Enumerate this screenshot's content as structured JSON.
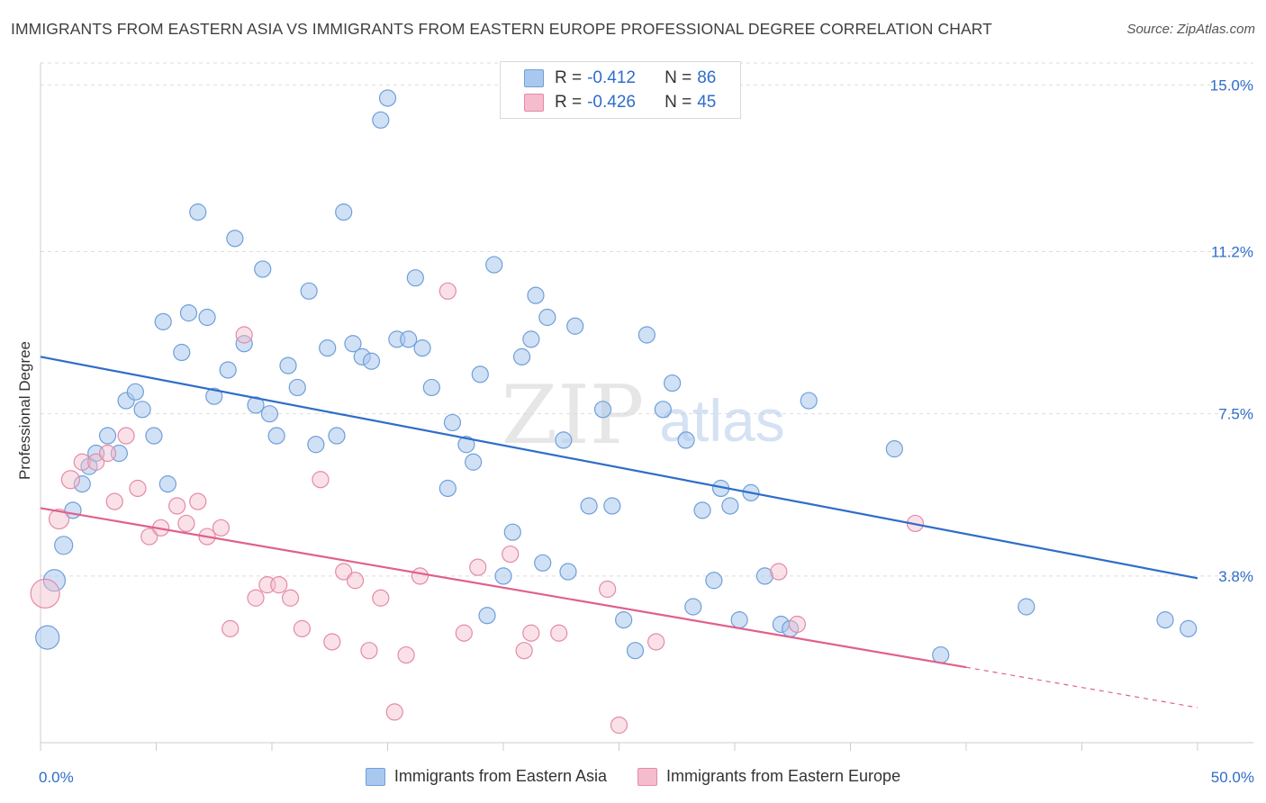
{
  "header": {
    "title": "IMMIGRANTS FROM EASTERN ASIA VS IMMIGRANTS FROM EASTERN EUROPE PROFESSIONAL DEGREE CORRELATION CHART",
    "source": "Source: ZipAtlas.com"
  },
  "watermark": {
    "zip": "ZIP",
    "atlas": "atlas"
  },
  "legend": {
    "rows": [
      {
        "r_label": "R =",
        "r_value": "-0.412",
        "n_label": "N =",
        "n_value": "86"
      },
      {
        "r_label": "R =",
        "r_value": "-0.426",
        "n_label": "N =",
        "n_value": "45"
      }
    ]
  },
  "colors": {
    "blue_fill": "#a9c8ef",
    "blue_stroke": "#6f9fd8",
    "blue_line": "#2f6dc8",
    "pink_fill": "#f5bccd",
    "pink_stroke": "#e48aa8",
    "pink_line": "#e0608c",
    "grid": "#dddddd",
    "tick_label": "#2f6dc8"
  },
  "chart_data": {
    "type": "scatter",
    "title": "IMMIGRANTS FROM EASTERN ASIA VS IMMIGRANTS FROM EASTERN EUROPE PROFESSIONAL DEGREE CORRELATION CHART",
    "xlabel": "",
    "ylabel": "Professional Degree",
    "xlim": [
      0,
      50
    ],
    "ylim": [
      0,
      15.5
    ],
    "x_tick_labels": [
      "0.0%",
      "50.0%"
    ],
    "y_ticks": [
      3.8,
      7.5,
      11.2,
      15.0
    ],
    "y_tick_labels": [
      "3.8%",
      "7.5%",
      "11.2%",
      "15.0%"
    ],
    "grid": "horizontal dashed",
    "legend_position": "top-center",
    "series": [
      {
        "name": "Immigrants from Eastern Asia",
        "r": -0.412,
        "n": 86,
        "trendline": {
          "x": [
            0,
            50
          ],
          "y": [
            8.8,
            3.75
          ],
          "style": "solid"
        },
        "points": [
          [
            0.3,
            2.4,
            13
          ],
          [
            0.6,
            3.7,
            12
          ],
          [
            1.0,
            4.5,
            10
          ],
          [
            1.4,
            5.3,
            9
          ],
          [
            1.8,
            5.9,
            9
          ],
          [
            2.1,
            6.3,
            9
          ],
          [
            2.4,
            6.6,
            9
          ],
          [
            2.9,
            7.0,
            9
          ],
          [
            3.4,
            6.6,
            9
          ],
          [
            3.7,
            7.8,
            9
          ],
          [
            4.1,
            8.0,
            9
          ],
          [
            4.4,
            7.6,
            9
          ],
          [
            4.9,
            7.0,
            9
          ],
          [
            5.3,
            9.6,
            9
          ],
          [
            5.5,
            5.9,
            9
          ],
          [
            6.1,
            8.9,
            9
          ],
          [
            6.4,
            9.8,
            9
          ],
          [
            6.8,
            12.1,
            9
          ],
          [
            7.2,
            9.7,
            9
          ],
          [
            7.5,
            7.9,
            9
          ],
          [
            8.1,
            8.5,
            9
          ],
          [
            8.4,
            11.5,
            9
          ],
          [
            8.8,
            9.1,
            9
          ],
          [
            9.3,
            7.7,
            9
          ],
          [
            9.6,
            10.8,
            9
          ],
          [
            9.9,
            7.5,
            9
          ],
          [
            10.2,
            7.0,
            9
          ],
          [
            10.7,
            8.6,
            9
          ],
          [
            11.1,
            8.1,
            9
          ],
          [
            11.6,
            10.3,
            9
          ],
          [
            11.9,
            6.8,
            9
          ],
          [
            12.4,
            9.0,
            9
          ],
          [
            12.8,
            7.0,
            9
          ],
          [
            13.1,
            12.1,
            9
          ],
          [
            13.5,
            9.1,
            9
          ],
          [
            13.9,
            8.8,
            9
          ],
          [
            14.3,
            8.7,
            9
          ],
          [
            14.7,
            14.2,
            9
          ],
          [
            15.0,
            14.7,
            9
          ],
          [
            15.4,
            9.2,
            9
          ],
          [
            15.9,
            9.2,
            9
          ],
          [
            16.2,
            10.6,
            9
          ],
          [
            16.5,
            9.0,
            9
          ],
          [
            16.9,
            8.1,
            9
          ],
          [
            17.6,
            5.8,
            9
          ],
          [
            17.8,
            7.3,
            9
          ],
          [
            18.4,
            6.8,
            9
          ],
          [
            18.7,
            6.4,
            9
          ],
          [
            19.0,
            8.4,
            9
          ],
          [
            19.3,
            2.9,
            9
          ],
          [
            19.6,
            10.9,
            9
          ],
          [
            20.0,
            3.8,
            9
          ],
          [
            20.4,
            4.8,
            9
          ],
          [
            20.8,
            8.8,
            9
          ],
          [
            21.2,
            9.2,
            9
          ],
          [
            21.4,
            10.2,
            9
          ],
          [
            21.7,
            4.1,
            9
          ],
          [
            21.9,
            9.7,
            9
          ],
          [
            22.6,
            6.9,
            9
          ],
          [
            22.8,
            3.9,
            9
          ],
          [
            23.1,
            9.5,
            9
          ],
          [
            23.7,
            5.4,
            9
          ],
          [
            24.3,
            7.6,
            9
          ],
          [
            24.7,
            5.4,
            9
          ],
          [
            25.2,
            2.8,
            9
          ],
          [
            25.7,
            2.1,
            9
          ],
          [
            26.2,
            9.3,
            9
          ],
          [
            26.9,
            7.6,
            9
          ],
          [
            27.3,
            8.2,
            9
          ],
          [
            27.9,
            6.9,
            9
          ],
          [
            28.2,
            3.1,
            9
          ],
          [
            28.6,
            5.3,
            9
          ],
          [
            29.1,
            3.7,
            9
          ],
          [
            29.4,
            5.8,
            9
          ],
          [
            29.8,
            5.4,
            9
          ],
          [
            30.2,
            2.8,
            9
          ],
          [
            30.7,
            5.7,
            9
          ],
          [
            31.3,
            3.8,
            9
          ],
          [
            32.0,
            2.7,
            9
          ],
          [
            32.4,
            2.6,
            9
          ],
          [
            33.2,
            7.8,
            9
          ],
          [
            36.9,
            6.7,
            9
          ],
          [
            38.9,
            2.0,
            9
          ],
          [
            42.6,
            3.1,
            9
          ],
          [
            48.6,
            2.8,
            9
          ],
          [
            49.6,
            2.6,
            9
          ]
        ]
      },
      {
        "name": "Immigrants from Eastern Europe",
        "r": -0.426,
        "n": 45,
        "trendline": {
          "x": [
            0,
            40
          ],
          "y": [
            5.35,
            1.72
          ],
          "style": "solid",
          "dashed_extension": {
            "x": [
              40,
              50
            ],
            "y": [
              1.72,
              0.8
            ]
          }
        },
        "points": [
          [
            0.2,
            3.4,
            16
          ],
          [
            0.8,
            5.1,
            11
          ],
          [
            1.3,
            6.0,
            10
          ],
          [
            1.8,
            6.4,
            9
          ],
          [
            2.4,
            6.4,
            9
          ],
          [
            2.9,
            6.6,
            9
          ],
          [
            3.2,
            5.5,
            9
          ],
          [
            3.7,
            7.0,
            9
          ],
          [
            4.2,
            5.8,
            9
          ],
          [
            4.7,
            4.7,
            9
          ],
          [
            5.2,
            4.9,
            9
          ],
          [
            5.9,
            5.4,
            9
          ],
          [
            6.3,
            5.0,
            9
          ],
          [
            6.8,
            5.5,
            9
          ],
          [
            7.2,
            4.7,
            9
          ],
          [
            7.8,
            4.9,
            9
          ],
          [
            8.2,
            2.6,
            9
          ],
          [
            8.8,
            9.3,
            9
          ],
          [
            9.3,
            3.3,
            9
          ],
          [
            9.8,
            3.6,
            9
          ],
          [
            10.3,
            3.6,
            9
          ],
          [
            10.8,
            3.3,
            9
          ],
          [
            11.3,
            2.6,
            9
          ],
          [
            12.1,
            6.0,
            9
          ],
          [
            12.6,
            2.3,
            9
          ],
          [
            13.1,
            3.9,
            9
          ],
          [
            13.6,
            3.7,
            9
          ],
          [
            14.2,
            2.1,
            9
          ],
          [
            14.7,
            3.3,
            9
          ],
          [
            15.3,
            0.7,
            9
          ],
          [
            15.8,
            2.0,
            9
          ],
          [
            16.4,
            3.8,
            9
          ],
          [
            17.6,
            10.3,
            9
          ],
          [
            18.3,
            2.5,
            9
          ],
          [
            18.9,
            4.0,
            9
          ],
          [
            20.3,
            4.3,
            9
          ],
          [
            20.9,
            2.1,
            9
          ],
          [
            21.2,
            2.5,
            9
          ],
          [
            22.4,
            2.5,
            9
          ],
          [
            24.5,
            3.5,
            9
          ],
          [
            25.0,
            0.4,
            9
          ],
          [
            26.6,
            2.3,
            9
          ],
          [
            31.9,
            3.9,
            9
          ],
          [
            32.7,
            2.7,
            9
          ],
          [
            37.8,
            5.0,
            9
          ]
        ]
      }
    ]
  },
  "bottom_legend": [
    {
      "label": "Immigrants from Eastern Asia"
    },
    {
      "label": "Immigrants from Eastern Europe"
    }
  ]
}
